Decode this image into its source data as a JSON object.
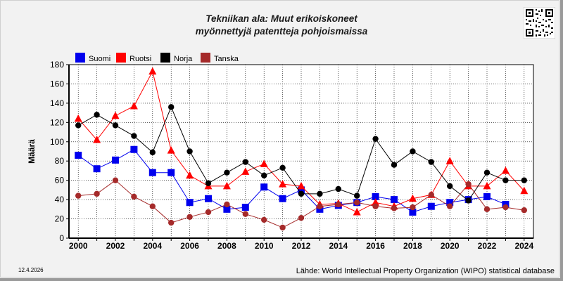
{
  "title_line1": "Tekniikan ala: Muut erikoiskoneet",
  "title_line2": "myönnettyjä patentteja pohjoismaissa",
  "date_stamp": "12.4.2026",
  "source": "Lähde: World Intellectual Property Organization (WIPO) statistical database",
  "chart_data": {
    "type": "line",
    "ylabel": "Määrä",
    "xlabel": "",
    "x": [
      2000,
      2001,
      2002,
      2003,
      2004,
      2005,
      2006,
      2007,
      2008,
      2009,
      2010,
      2011,
      2012,
      2013,
      2014,
      2015,
      2016,
      2017,
      2018,
      2019,
      2020,
      2021,
      2022,
      2023,
      2024
    ],
    "x_ticks": [
      2000,
      2002,
      2004,
      2006,
      2008,
      2010,
      2012,
      2014,
      2016,
      2018,
      2020,
      2022,
      2024
    ],
    "xlim": [
      1999.5,
      2024.5
    ],
    "ylim": [
      0,
      180
    ],
    "y_ticks": [
      0,
      20,
      40,
      60,
      80,
      100,
      120,
      140,
      160,
      180
    ],
    "grid": true,
    "legend_position": "top-left",
    "series": [
      {
        "name": "Suomi",
        "color": "#0000ee",
        "marker": "square",
        "values": [
          86,
          72,
          81,
          92,
          68,
          68,
          37,
          41,
          30,
          32,
          53,
          41,
          50,
          30,
          34,
          37,
          43,
          40,
          27,
          33,
          37,
          40,
          43,
          35,
          null
        ]
      },
      {
        "name": "Ruotsi",
        "color": "#ff0000",
        "marker": "triangle",
        "values": [
          124,
          102,
          127,
          137,
          173,
          91,
          65,
          54,
          54,
          69,
          77,
          56,
          54,
          35,
          36,
          27,
          37,
          33,
          41,
          45,
          80,
          54,
          54,
          70,
          49
        ]
      },
      {
        "name": "Norja",
        "color": "#000000",
        "marker": "circle",
        "values": [
          117,
          128,
          117,
          106,
          89,
          136,
          90,
          57,
          68,
          79,
          65,
          73,
          46,
          46,
          51,
          44,
          103,
          76,
          90,
          79,
          54,
          39,
          68,
          60,
          60
        ]
      },
      {
        "name": "Tanska",
        "color": "#a52a2a",
        "marker": "circle",
        "values": [
          44,
          46,
          60,
          43,
          33,
          16,
          22,
          27,
          35,
          25,
          19,
          11,
          21,
          33,
          35,
          37,
          33,
          31,
          32,
          45,
          33,
          56,
          30,
          32,
          29
        ]
      }
    ]
  }
}
